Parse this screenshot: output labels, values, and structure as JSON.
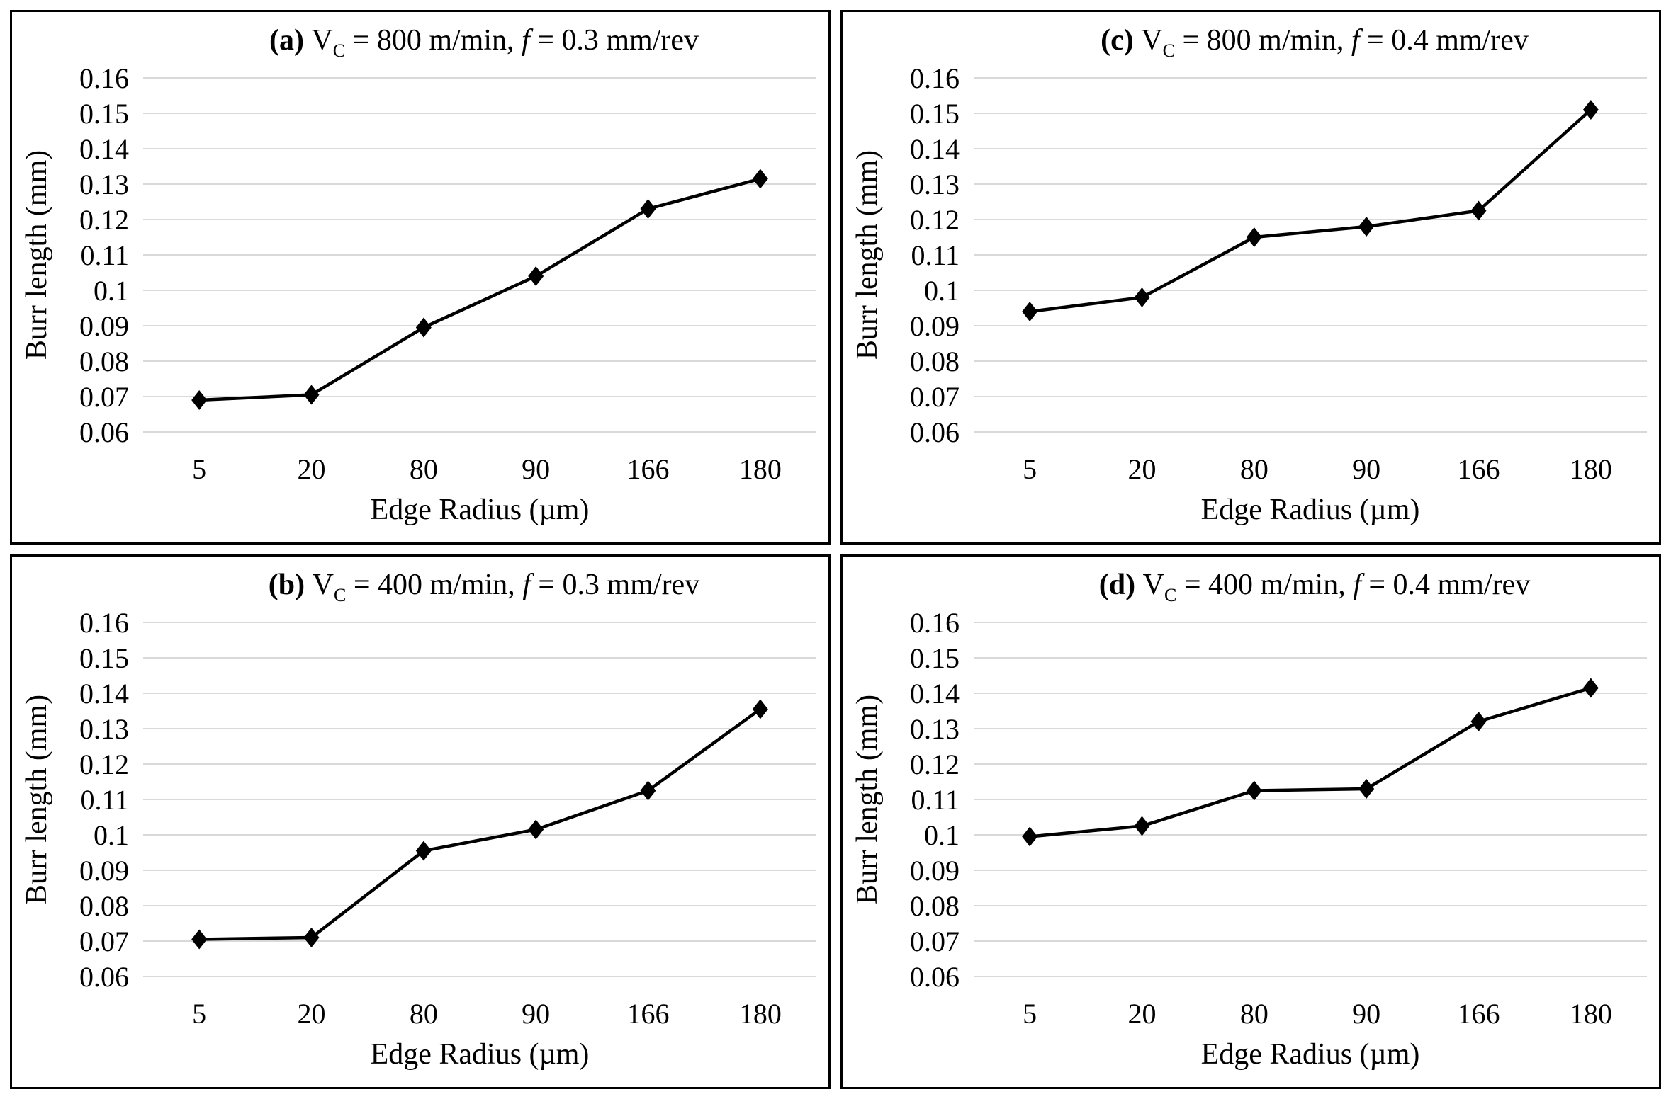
{
  "styles": {
    "background": "#ffffff",
    "panel_border_color": "#000000",
    "gridline_color": "#d9d9d9",
    "line_color": "#000000",
    "marker_color": "#000000",
    "text_color": "#000000"
  },
  "chart_data": [
    {
      "id": "a",
      "type": "line",
      "position": "top-left",
      "title": {
        "tag": "(a) ",
        "v": "V",
        "v_sub": "C",
        "mid": " = 800 m/min, ",
        "f": "f",
        "end": " = 0.3 mm/rev"
      },
      "xlabel": "Edge Radius (µm)",
      "ylabel": "Burr length (mm)",
      "categories": [
        "5",
        "20",
        "80",
        "90",
        "166",
        "180"
      ],
      "values": [
        0.069,
        0.0705,
        0.0895,
        0.104,
        0.123,
        0.1315
      ],
      "ylim": [
        0.06,
        0.16
      ],
      "yticks": [
        "0.16",
        "0.15",
        "0.14",
        "0.13",
        "0.12",
        "0.11",
        "0.1",
        "0.09",
        "0.08",
        "0.07",
        "0.06"
      ],
      "grid": "horizontal",
      "legend": "none",
      "marker": "diamond"
    },
    {
      "id": "c",
      "type": "line",
      "position": "top-right",
      "title": {
        "tag": "(c) ",
        "v": "V",
        "v_sub": "C",
        "mid": " = 800 m/min, ",
        "f": "f",
        "end": " = 0.4 mm/rev"
      },
      "xlabel": "Edge Radius (µm)",
      "ylabel": "Burr length (mm)",
      "categories": [
        "5",
        "20",
        "80",
        "90",
        "166",
        "180"
      ],
      "values": [
        0.094,
        0.098,
        0.115,
        0.118,
        0.1225,
        0.151
      ],
      "ylim": [
        0.06,
        0.16
      ],
      "yticks": [
        "0.16",
        "0.15",
        "0.14",
        "0.13",
        "0.12",
        "0.11",
        "0.1",
        "0.09",
        "0.08",
        "0.07",
        "0.06"
      ],
      "grid": "horizontal",
      "legend": "none",
      "marker": "diamond"
    },
    {
      "id": "b",
      "type": "line",
      "position": "bottom-left",
      "title": {
        "tag": "(b) ",
        "v": "V",
        "v_sub": "C",
        "mid": " = 400 m/min, ",
        "f": "f",
        "end": " = 0.3 mm/rev"
      },
      "xlabel": "Edge Radius (µm)",
      "ylabel": "Burr length (mm)",
      "categories": [
        "5",
        "20",
        "80",
        "90",
        "166",
        "180"
      ],
      "values": [
        0.0705,
        0.071,
        0.0955,
        0.1015,
        0.1125,
        0.1355
      ],
      "ylim": [
        0.06,
        0.16
      ],
      "yticks": [
        "0.16",
        "0.15",
        "0.14",
        "0.13",
        "0.12",
        "0.11",
        "0.1",
        "0.09",
        "0.08",
        "0.07",
        "0.06"
      ],
      "grid": "horizontal",
      "legend": "none",
      "marker": "diamond"
    },
    {
      "id": "d",
      "type": "line",
      "position": "bottom-right",
      "title": {
        "tag": "(d) ",
        "v": "V",
        "v_sub": "C",
        "mid": " = 400 m/min, ",
        "f": "f",
        "end": " = 0.4 mm/rev"
      },
      "xlabel": "Edge Radius (µm)",
      "ylabel": "Burr length (mm)",
      "categories": [
        "5",
        "20",
        "80",
        "90",
        "166",
        "180"
      ],
      "values": [
        0.0995,
        0.1025,
        0.1125,
        0.113,
        0.132,
        0.1415
      ],
      "ylim": [
        0.06,
        0.16
      ],
      "yticks": [
        "0.16",
        "0.15",
        "0.14",
        "0.13",
        "0.12",
        "0.11",
        "0.1",
        "0.09",
        "0.08",
        "0.07",
        "0.06"
      ],
      "grid": "horizontal",
      "legend": "none",
      "marker": "diamond"
    }
  ]
}
